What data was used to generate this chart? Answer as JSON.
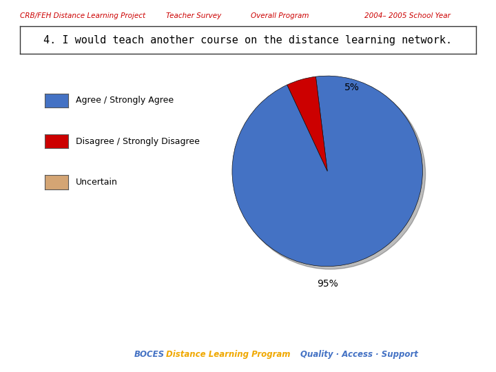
{
  "question": "4. I would teach another course on the distance learning network.",
  "slices": [
    95,
    5
  ],
  "colors": [
    "#4472c4",
    "#cc0000"
  ],
  "legend_labels": [
    "Agree / Strongly Agree",
    "Disagree / Strongly Disagree",
    "Uncertain"
  ],
  "legend_colors": [
    "#4472c4",
    "#cc0000",
    "#d4a574"
  ],
  "footer_boces_color": "#4472c4",
  "footer_dlp_color": "#f0a800",
  "footer_quality_color": "#4472c4",
  "header_color": "#cc0000",
  "background_color": "#ffffff",
  "pie_startangle": 97,
  "label_95": "95%",
  "label_5": "5%"
}
